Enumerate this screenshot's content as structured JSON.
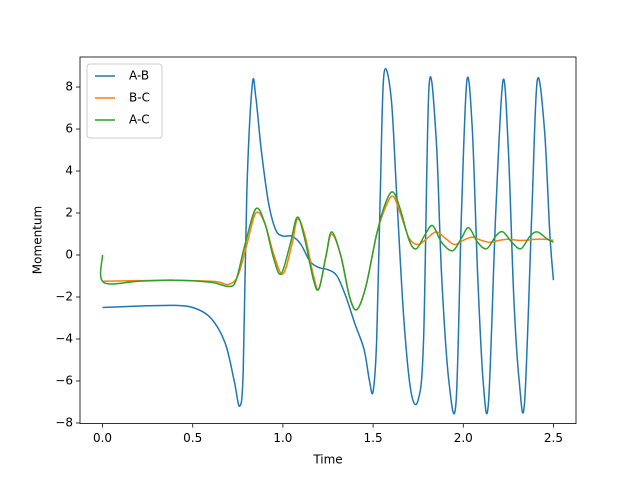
{
  "chart_data": {
    "type": "line",
    "xlabel": "Time",
    "ylabel": "Momentum",
    "xlim": [
      -0.125,
      2.625
    ],
    "ylim": [
      -8.03,
      9.43
    ],
    "xticks": [
      {
        "value": 0,
        "label": "0.0"
      },
      0.5,
      {
        "value": 1,
        "label": "1.0"
      },
      1.5,
      {
        "value": 2,
        "label": "2.0"
      },
      2.5
    ],
    "yticks": [
      {
        "value": -8,
        "label": "−8"
      },
      {
        "value": -6,
        "label": "−6"
      },
      {
        "value": -4,
        "label": "−4"
      },
      {
        "value": -2,
        "label": "−2"
      },
      0,
      2,
      4,
      6,
      8
    ],
    "grid": false,
    "legend": "upper left",
    "series": [
      {
        "name": "A-B",
        "color": "#1f77b4",
        "x": [
          0,
          0.25,
          0.4,
          0.5,
          0.6,
          0.68,
          0.73,
          0.76,
          0.78,
          0.8,
          0.83,
          0.85,
          0.88,
          0.92,
          0.96,
          1.0,
          1.05,
          1.1,
          1.15,
          1.2,
          1.25,
          1.3,
          1.35,
          1.4,
          1.45,
          1.48,
          1.5,
          1.52,
          1.54,
          1.56,
          1.6,
          1.63,
          1.67,
          1.71,
          1.75,
          1.78,
          1.81,
          1.85,
          1.88,
          1.92,
          1.96,
          1.99,
          2.02,
          2.05,
          2.08,
          2.11,
          2.14,
          2.18,
          2.22,
          2.25,
          2.28,
          2.31,
          2.34,
          2.38,
          2.41,
          2.45,
          2.48,
          2.5
        ],
        "values": [
          -2.5,
          -2.42,
          -2.4,
          -2.5,
          -3.0,
          -4.2,
          -6.0,
          -7.2,
          -5.5,
          3.0,
          8.1,
          7.5,
          5.0,
          2.5,
          1.2,
          0.9,
          0.9,
          0.5,
          -0.3,
          -0.6,
          -0.7,
          -1.0,
          -2.0,
          -3.3,
          -4.5,
          -6.0,
          -6.5,
          -4.0,
          3.0,
          8.6,
          7.5,
          3.0,
          -3.0,
          -6.5,
          -6.9,
          -4.0,
          8.0,
          5.5,
          -1.0,
          -6.0,
          -7.0,
          2.0,
          8.3,
          6.0,
          -1.0,
          -6.0,
          -7.0,
          2.0,
          8.3,
          5.0,
          -2.0,
          -6.0,
          -7.0,
          2.0,
          8.3,
          6.0,
          1.0,
          -1.2
        ]
      },
      {
        "name": "B-C",
        "color": "#ff7f0e",
        "x": [
          0,
          0.2,
          0.4,
          0.6,
          0.65,
          0.7,
          0.75,
          0.8,
          0.85,
          0.9,
          0.95,
          1.0,
          1.05,
          1.08,
          1.12,
          1.17,
          1.2,
          1.24,
          1.27,
          1.32,
          1.37,
          1.41,
          1.46,
          1.52,
          1.57,
          1.61,
          1.65,
          1.7,
          1.75,
          1.8,
          1.85,
          1.9,
          1.95,
          2.0,
          2.05,
          2.1,
          2.15,
          2.2,
          2.25,
          2.3,
          2.35,
          2.4,
          2.45,
          2.5
        ],
        "values": [
          -1.25,
          -1.22,
          -1.2,
          -1.25,
          -1.3,
          -1.4,
          -1.0,
          0.5,
          2.0,
          1.5,
          0.0,
          -0.9,
          0.5,
          1.7,
          1.0,
          -1.0,
          -1.6,
          0.0,
          1.0,
          0.0,
          -2.0,
          -2.6,
          -1.5,
          1.0,
          2.3,
          2.8,
          2.0,
          0.8,
          0.5,
          0.8,
          1.1,
          0.8,
          0.5,
          0.7,
          0.85,
          0.7,
          0.6,
          0.7,
          0.75,
          0.7,
          0.7,
          0.75,
          0.75,
          0.7
        ]
      },
      {
        "name": "A-C",
        "color": "#2ca02c",
        "x": [
          0,
          0.005,
          0.2,
          0.4,
          0.6,
          0.7,
          0.74,
          0.79,
          0.85,
          0.9,
          0.95,
          0.99,
          1.04,
          1.08,
          1.12,
          1.17,
          1.2,
          1.24,
          1.27,
          1.32,
          1.37,
          1.41,
          1.46,
          1.52,
          1.57,
          1.61,
          1.65,
          1.7,
          1.74,
          1.79,
          1.83,
          1.88,
          1.94,
          1.99,
          2.03,
          2.08,
          2.13,
          2.18,
          2.22,
          2.27,
          2.32,
          2.37,
          2.41,
          2.46,
          2.5
        ],
        "values": [
          0,
          -1.3,
          -1.25,
          -1.2,
          -1.3,
          -1.5,
          -1.2,
          0.5,
          2.2,
          1.5,
          -0.2,
          -0.9,
          0.5,
          1.8,
          0.8,
          -1.2,
          -1.6,
          0.0,
          1.1,
          0.0,
          -2.0,
          -2.6,
          -1.5,
          1.0,
          2.5,
          3.0,
          2.2,
          0.7,
          0.3,
          1.0,
          1.4,
          0.6,
          0.2,
          0.8,
          1.3,
          0.6,
          0.3,
          0.9,
          1.1,
          0.6,
          0.3,
          0.9,
          1.1,
          0.8,
          0.6
        ]
      }
    ]
  }
}
